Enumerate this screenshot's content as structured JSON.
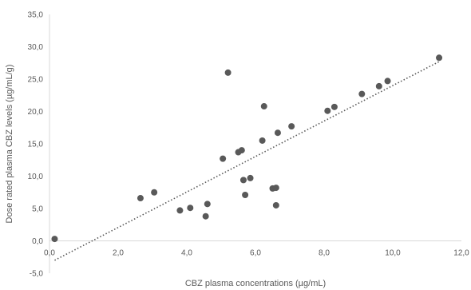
{
  "chart_data": {
    "type": "scatter",
    "title": "",
    "xlabel": "CBZ plasma concentrations (µg/mL)",
    "ylabel": "Dose rated plasma CBZ levels (µg/mL/g)",
    "xlim": [
      0,
      12
    ],
    "ylim": [
      -5,
      35
    ],
    "xticks": [
      "0,0",
      "2,0",
      "4,0",
      "6,0",
      "8,0",
      "10,0",
      "12,0"
    ],
    "yticks": [
      "-5,0",
      "0,0",
      "5,0",
      "10,0",
      "15,0",
      "20,0",
      "25,0",
      "30,0",
      "35,0"
    ],
    "grid": false,
    "marker_color": "#595959",
    "series": [
      {
        "points": [
          [
            0.15,
            0.3
          ],
          [
            2.65,
            6.6
          ],
          [
            3.05,
            7.5
          ],
          [
            3.8,
            4.7
          ],
          [
            4.1,
            5.1
          ],
          [
            4.55,
            3.8
          ],
          [
            4.6,
            5.7
          ],
          [
            5.05,
            12.7
          ],
          [
            5.2,
            26.0
          ],
          [
            5.5,
            13.7
          ],
          [
            5.6,
            14.0
          ],
          [
            5.65,
            9.4
          ],
          [
            5.7,
            7.1
          ],
          [
            5.85,
            9.7
          ],
          [
            6.2,
            15.5
          ],
          [
            6.25,
            20.8
          ],
          [
            6.5,
            8.1
          ],
          [
            6.6,
            8.2
          ],
          [
            6.6,
            5.5
          ],
          [
            6.65,
            16.7
          ],
          [
            7.05,
            17.7
          ],
          [
            8.1,
            20.1
          ],
          [
            8.3,
            20.7
          ],
          [
            9.1,
            22.7
          ],
          [
            9.6,
            23.9
          ],
          [
            9.85,
            24.7
          ],
          [
            11.35,
            28.3
          ]
        ]
      }
    ],
    "trendline": {
      "style": "dotted",
      "color": "#595959",
      "x": [
        0.15,
        11.35
      ],
      "y": [
        -3.0,
        27.7
      ]
    }
  }
}
